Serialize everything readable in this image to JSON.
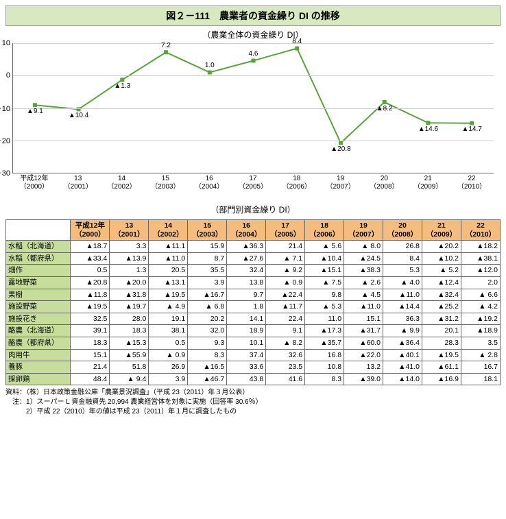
{
  "title": "図２－111　農業者の資金繰り DI の推移",
  "chart": {
    "subtitle": "（農業全体の資金繰り DI）",
    "ylim": [
      -30,
      10
    ],
    "yticks": [
      10,
      0,
      -10,
      -20,
      -30
    ],
    "years": [
      "平成12年\n（2000）",
      "13\n（2001）",
      "14\n（2002）",
      "15\n（2003）",
      "16\n（2004）",
      "17\n（2005）",
      "18\n（2006）",
      "19\n（2007）",
      "20\n（2008）",
      "21\n（2009）",
      "22\n（2010）"
    ],
    "values": [
      -9.1,
      -10.4,
      -1.3,
      7.2,
      1.0,
      4.6,
      8.4,
      -20.8,
      -8.2,
      -14.6,
      -14.7
    ],
    "labels": [
      "▲9.1",
      "▲10.4",
      "▲1.3",
      "7.2",
      "1.0",
      "4.6",
      "8.4",
      "▲20.8",
      "▲8.2",
      "▲14.6",
      "▲14.7"
    ],
    "line_color": "#59a43a",
    "marker_color": "#59a43a",
    "grid_color": "#cccccc",
    "marker_size": 6,
    "line_width": 2
  },
  "table": {
    "subtitle": "（部門別資金繰り DI）",
    "headers": [
      "",
      "平成12年\n（2000）",
      "13\n（2001）",
      "14\n（2002）",
      "15\n（2003）",
      "16\n（2004）",
      "17\n（2005）",
      "18\n（2006）",
      "19\n（2007）",
      "20\n（2008）",
      "21\n（2009）",
      "22\n（2010）"
    ],
    "rows": [
      {
        "h": "水稲（北海道）",
        "v": [
          "▲18.7",
          "3.3",
          "▲11.1",
          "15.9",
          "▲36.3",
          "21.4",
          "▲ 5.6",
          "▲ 8.0",
          "26.8",
          "▲20.2",
          "▲18.2"
        ]
      },
      {
        "h": "水稲（都府県）",
        "v": [
          "▲33.4",
          "▲13.9",
          "▲11.0",
          "8.7",
          "▲27.6",
          "▲ 7.1",
          "▲10.4",
          "▲24.5",
          "8.4",
          "▲10.2",
          "▲38.1"
        ]
      },
      {
        "h": "畑作",
        "v": [
          "0.5",
          "1.3",
          "20.5",
          "35.5",
          "32.4",
          "▲ 9.2",
          "▲15.1",
          "▲38.3",
          "5.3",
          "▲ 5.2",
          "▲12.0"
        ]
      },
      {
        "h": "露地野菜",
        "v": [
          "▲20.8",
          "▲20.0",
          "▲13.1",
          "3.9",
          "13.8",
          "▲ 0.9",
          "▲ 7.5",
          "▲ 2.6",
          "▲ 4.0",
          "▲12.4",
          "2.0"
        ]
      },
      {
        "h": "果樹",
        "v": [
          "▲11.8",
          "▲31.8",
          "▲19.5",
          "▲16.7",
          "9.7",
          "▲22.4",
          "9.8",
          "▲ 4.5",
          "▲11.0",
          "▲32.4",
          "▲ 6.6"
        ]
      },
      {
        "h": "施設野菜",
        "v": [
          "▲19.5",
          "▲19.7",
          "▲ 4.9",
          "▲ 6.8",
          "1.8",
          "▲11.7",
          "▲ 5.3",
          "▲11.0",
          "▲14.4",
          "▲25.2",
          "▲ 4.2"
        ]
      },
      {
        "h": "施設花き",
        "v": [
          "32.5",
          "28.0",
          "19.1",
          "20.2",
          "14.1",
          "22.4",
          "11.0",
          "15.1",
          "36.3",
          "▲31.2",
          "▲19.2"
        ]
      },
      {
        "h": "酪農（北海道）",
        "v": [
          "39.1",
          "18.3",
          "38.1",
          "32.0",
          "18.9",
          "9.1",
          "▲17.3",
          "▲31.7",
          "▲ 9.9",
          "20.1",
          "▲18.9"
        ]
      },
      {
        "h": "酪農（都府県）",
        "v": [
          "18.3",
          "▲15.3",
          "0.5",
          "9.3",
          "10.1",
          "▲ 8.2",
          "▲35.7",
          "▲60.0",
          "▲36.4",
          "28.3",
          "3.5"
        ]
      },
      {
        "h": "肉用牛",
        "v": [
          "15.1",
          "▲55.9",
          "▲ 0.9",
          "8.3",
          "37.4",
          "32.6",
          "16.8",
          "▲22.0",
          "▲40.1",
          "▲19.5",
          "▲ 2.8"
        ]
      },
      {
        "h": "養豚",
        "v": [
          "21.4",
          "51.8",
          "26.9",
          "▲16.5",
          "33.6",
          "23.5",
          "10.8",
          "13.2",
          "▲41.0",
          "▲61.1",
          "16.7"
        ]
      },
      {
        "h": "採卵鶏",
        "v": [
          "48.4",
          "▲ 9.4",
          "3.9",
          "▲46.7",
          "43.8",
          "41.6",
          "8.3",
          "▲39.0",
          "▲14.0",
          "▲16.9",
          "18.1"
        ]
      }
    ]
  },
  "notes": [
    "資料：（株）日本政策金融公庫「農業景況調査」（平成 23（2011）年３月公表）",
    "　注：1）スーパー L 資金融資先 20,994 農業経営体を対象に実施（回答率 30.6％）",
    "　　　2）平成 22（2010）年の値は平成 23（2011）年１月に調査したもの"
  ]
}
